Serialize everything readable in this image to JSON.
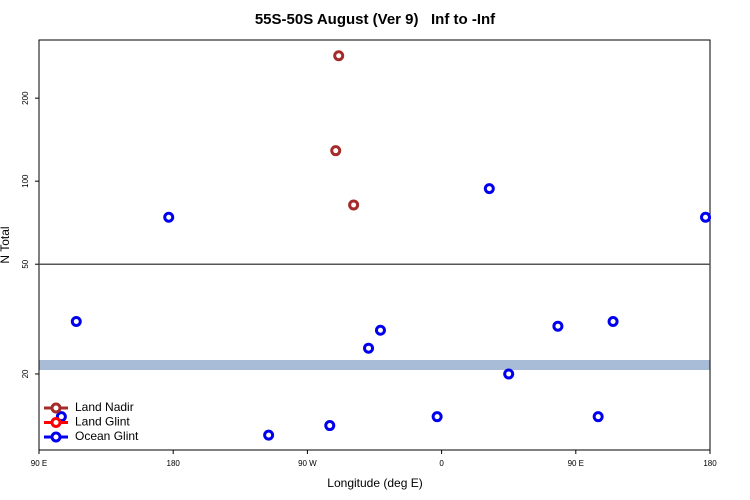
{
  "chart_data": {
    "type": "scatter",
    "title": "55S-50S August (Ver 9)   Inf to -Inf",
    "x_label": "Longitude (deg E)",
    "y_label": "N Total",
    "log_y": true,
    "xlim": [
      90,
      540
    ],
    "xticks": [
      {
        "value": 90,
        "label": "90 E"
      },
      180,
      {
        "value": 270,
        "label": "90 W"
      },
      {
        "value": 360,
        "label": "0"
      },
      {
        "value": 450,
        "label": "90 E"
      },
      {
        "value": 540,
        "label": "180"
      }
    ],
    "ylim": [
      10.6,
      325
    ],
    "yticks": [
      20,
      50,
      100,
      200
    ],
    "reference_line": 50,
    "legend": "bottom-left",
    "series": [
      {
        "name": "Land Nadir",
        "color": "#a52a2a",
        "x": [
          289,
          291,
          301
        ],
        "values": [
          129,
          285,
          82
        ]
      },
      {
        "name": "Land Glint",
        "color": "#ff0000",
        "x": [],
        "values": []
      },
      {
        "name": "Ocean Glint",
        "color": "#0000ee",
        "x": [
          105,
          115,
          177,
          244,
          285,
          311,
          319,
          357,
          392,
          405,
          438,
          465,
          475,
          537
        ],
        "values": [
          14,
          31,
          74,
          12,
          13,
          24.8,
          28.8,
          14,
          94,
          20,
          29.8,
          14,
          31,
          74
        ]
      }
    ]
  }
}
